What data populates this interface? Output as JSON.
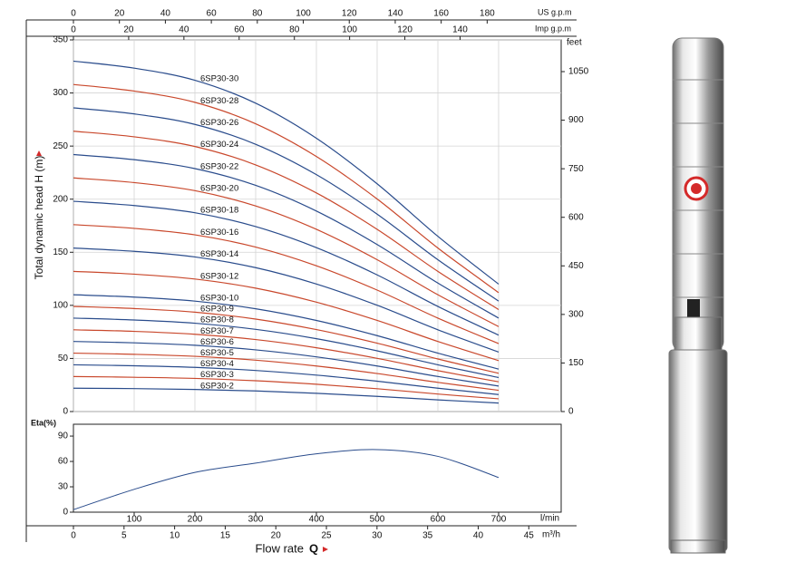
{
  "chart_data": [
    {
      "type": "line",
      "y_label": "Total dynamic head H (m)",
      "y2_label": "feet",
      "x": [
        0,
        100,
        200,
        300,
        400,
        500,
        600,
        700
      ],
      "xlim": [
        0,
        803
      ],
      "xticks": [
        0,
        100,
        200,
        300,
        400,
        500,
        600,
        700
      ],
      "ylim": [
        0,
        350
      ],
      "yticks": [
        0,
        50,
        100,
        150,
        200,
        250,
        300,
        350
      ],
      "y2lim": [
        0,
        1148
      ],
      "y2ticks": [
        0,
        150,
        300,
        450,
        600,
        750,
        900,
        1050
      ],
      "us_gpm_axis": {
        "label": "US g.p.m",
        "xlim": [
          0,
          212.2
        ],
        "xticks": [
          0,
          20,
          40,
          60,
          80,
          100,
          120,
          140,
          160,
          180
        ]
      },
      "imp_gpm_axis": {
        "label": "Imp g.p.m",
        "xlim": [
          0,
          176.6
        ],
        "xticks": [
          0,
          20,
          40,
          60,
          80,
          100,
          120,
          140
        ]
      },
      "grid": true,
      "series": [
        {
          "name": "6SP30-30",
          "color": "#2a4c8c",
          "values": [
            330,
            323.4,
            312,
            290.4,
            257.4,
            214.5,
            165,
            120
          ]
        },
        {
          "name": "6SP30-28",
          "color": "#c9482c",
          "values": [
            308,
            301.8,
            291.2,
            271,
            240.2,
            200.2,
            154,
            112
          ]
        },
        {
          "name": "6SP30-26",
          "color": "#2a4c8c",
          "values": [
            286,
            280.3,
            270.4,
            251.7,
            223.1,
            185.9,
            143,
            104
          ]
        },
        {
          "name": "6SP30-24",
          "color": "#c9482c",
          "values": [
            264,
            258.7,
            249.6,
            232.3,
            205.9,
            171.6,
            132,
            96
          ]
        },
        {
          "name": "6SP30-22",
          "color": "#2a4c8c",
          "values": [
            242,
            237.2,
            228.8,
            213,
            188.8,
            157.3,
            121,
            88
          ]
        },
        {
          "name": "6SP30-20",
          "color": "#c9482c",
          "values": [
            220,
            215.6,
            208,
            193.6,
            171.6,
            143,
            110,
            80
          ]
        },
        {
          "name": "6SP30-18",
          "color": "#2a4c8c",
          "values": [
            198,
            194,
            187.2,
            174.2,
            154.4,
            128.7,
            99,
            72
          ]
        },
        {
          "name": "6SP30-16",
          "color": "#c9482c",
          "values": [
            176,
            172.5,
            166.4,
            154.9,
            137.3,
            114.4,
            88,
            64
          ]
        },
        {
          "name": "6SP30-14",
          "color": "#2a4c8c",
          "values": [
            154,
            150.9,
            145.6,
            135.5,
            120.1,
            100.1,
            77,
            56
          ]
        },
        {
          "name": "6SP30-12",
          "color": "#c9482c",
          "values": [
            132,
            129.4,
            124.8,
            116.2,
            103,
            85.8,
            66,
            48
          ]
        },
        {
          "name": "6SP30-10",
          "color": "#2a4c8c",
          "values": [
            110,
            107.8,
            104,
            96.8,
            85.8,
            71.5,
            55,
            40
          ]
        },
        {
          "name": "6SP30-9",
          "color": "#c9482c",
          "values": [
            99,
            97,
            93.6,
            87.1,
            77.2,
            64.4,
            49.5,
            36
          ]
        },
        {
          "name": "6SP30-8",
          "color": "#2a4c8c",
          "values": [
            88,
            86.2,
            83.2,
            77.4,
            68.6,
            57.2,
            44,
            32
          ]
        },
        {
          "name": "6SP30-7",
          "color": "#c9482c",
          "values": [
            77,
            75.5,
            72.8,
            67.8,
            60.1,
            50.1,
            38.5,
            28
          ]
        },
        {
          "name": "6SP30-6",
          "color": "#2a4c8c",
          "values": [
            66,
            64.7,
            62.4,
            58.1,
            51.5,
            42.9,
            33,
            24
          ]
        },
        {
          "name": "6SP30-5",
          "color": "#c9482c",
          "values": [
            55,
            53.9,
            52,
            48.4,
            42.9,
            35.8,
            27.5,
            20
          ]
        },
        {
          "name": "6SP30-4",
          "color": "#2a4c8c",
          "values": [
            44,
            43.1,
            41.6,
            38.7,
            34.3,
            28.6,
            22,
            16
          ]
        },
        {
          "name": "6SP30-3",
          "color": "#c9482c",
          "values": [
            33,
            32.3,
            31.2,
            29,
            25.7,
            21.5,
            16.5,
            12
          ]
        },
        {
          "name": "6SP30-2",
          "color": "#2a4c8c",
          "values": [
            22,
            21.6,
            20.8,
            19.4,
            17.2,
            14.3,
            11,
            8
          ]
        }
      ]
    },
    {
      "type": "line",
      "y_label": "Eta(%)",
      "x_label": "Flow rate",
      "x_label_symbol": "Q",
      "x_unit": "l/min",
      "x": [
        0,
        100,
        200,
        300,
        400,
        500,
        600,
        700
      ],
      "xlim": [
        0,
        803
      ],
      "xticks": [
        100,
        200,
        300,
        400,
        500,
        600,
        700
      ],
      "ylim": [
        0,
        104
      ],
      "yticks": [
        0,
        30,
        60,
        90
      ],
      "m3h_axis": {
        "label": "m³/h",
        "xlim": [
          0,
          48.2
        ],
        "xticks": [
          0,
          5,
          10,
          15,
          20,
          25,
          30,
          35,
          40,
          45
        ]
      },
      "series": [
        {
          "color": "#2a4c8c",
          "values": [
            3,
            27,
            47,
            58,
            69,
            74,
            66,
            41
          ]
        }
      ]
    }
  ]
}
